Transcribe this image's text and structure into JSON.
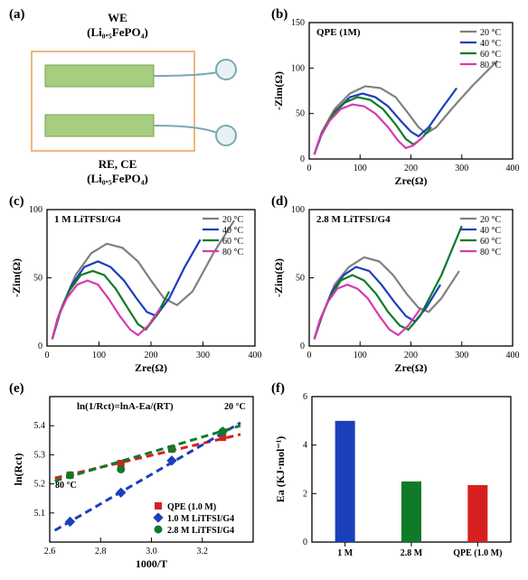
{
  "panel_a": {
    "label": "(a)",
    "we_label": "WE",
    "we_material": "(Li₀.₅FePO₄)",
    "rece_label": "RE, CE",
    "rece_material": "(Li₀.₅FePO₄)",
    "electrode_color": "#a6ce7e",
    "box_border": "#e8a052",
    "wire_color": "#7ba8b5",
    "circle_fill": "#d4e9ec"
  },
  "panel_b": {
    "label": "(b)",
    "title": "QPE (1M)",
    "xlabel": "Zre(Ω)",
    "ylabel": "-Zim(Ω)",
    "xlim": [
      0,
      400
    ],
    "xticks": [
      0,
      100,
      200,
      300,
      400
    ],
    "ylim": [
      0,
      150
    ],
    "yticks": [
      0,
      50,
      100,
      150
    ],
    "series": {
      "20C": {
        "color": "#808080",
        "label": "20 °C",
        "data": [
          [
            10,
            5
          ],
          [
            25,
            30
          ],
          [
            50,
            55
          ],
          [
            80,
            72
          ],
          [
            110,
            80
          ],
          [
            140,
            78
          ],
          [
            170,
            68
          ],
          [
            195,
            50
          ],
          [
            215,
            35
          ],
          [
            230,
            28
          ],
          [
            250,
            35
          ],
          [
            280,
            55
          ],
          [
            320,
            80
          ],
          [
            370,
            108
          ]
        ]
      },
      "40C": {
        "color": "#1b3fbb",
        "label": "40 °C",
        "data": [
          [
            10,
            5
          ],
          [
            25,
            28
          ],
          [
            50,
            52
          ],
          [
            80,
            68
          ],
          [
            105,
            72
          ],
          [
            130,
            68
          ],
          [
            155,
            58
          ],
          [
            180,
            42
          ],
          [
            200,
            30
          ],
          [
            215,
            25
          ],
          [
            235,
            35
          ],
          [
            260,
            55
          ],
          [
            290,
            78
          ]
        ]
      },
      "60C": {
        "color": "#0f7a28",
        "label": "60 °C",
        "data": [
          [
            10,
            5
          ],
          [
            22,
            25
          ],
          [
            45,
            48
          ],
          [
            70,
            62
          ],
          [
            95,
            68
          ],
          [
            120,
            65
          ],
          [
            145,
            55
          ],
          [
            170,
            38
          ],
          [
            190,
            22
          ],
          [
            205,
            16
          ],
          [
            220,
            22
          ],
          [
            240,
            35
          ]
        ]
      },
      "80C": {
        "color": "#d63ab0",
        "label": "80 °C",
        "data": [
          [
            10,
            5
          ],
          [
            20,
            22
          ],
          [
            40,
            42
          ],
          [
            62,
            55
          ],
          [
            85,
            60
          ],
          [
            108,
            58
          ],
          [
            130,
            50
          ],
          [
            155,
            35
          ],
          [
            175,
            20
          ],
          [
            190,
            12
          ],
          [
            205,
            15
          ],
          [
            225,
            25
          ]
        ]
      }
    }
  },
  "panel_c": {
    "label": "(c)",
    "title": "1 M LiTFSI/G4",
    "xlabel": "Zre(Ω)",
    "ylabel": "-Zim(Ω)",
    "xlim": [
      0,
      400
    ],
    "xticks": [
      0,
      100,
      200,
      300,
      400
    ],
    "ylim": [
      0,
      100
    ],
    "yticks": [
      0,
      50,
      100
    ],
    "series": {
      "20C": {
        "color": "#808080",
        "label": "20 °C",
        "data": [
          [
            10,
            5
          ],
          [
            30,
            30
          ],
          [
            55,
            52
          ],
          [
            85,
            68
          ],
          [
            115,
            75
          ],
          [
            145,
            72
          ],
          [
            175,
            62
          ],
          [
            200,
            48
          ],
          [
            225,
            35
          ],
          [
            250,
            30
          ],
          [
            280,
            40
          ],
          [
            320,
            68
          ],
          [
            360,
            92
          ]
        ]
      },
      "40C": {
        "color": "#1b3fbb",
        "label": "40 °C",
        "data": [
          [
            10,
            5
          ],
          [
            25,
            25
          ],
          [
            48,
            45
          ],
          [
            72,
            58
          ],
          [
            98,
            62
          ],
          [
            122,
            58
          ],
          [
            148,
            48
          ],
          [
            172,
            35
          ],
          [
            192,
            25
          ],
          [
            210,
            22
          ],
          [
            235,
            35
          ],
          [
            265,
            58
          ],
          [
            295,
            78
          ]
        ]
      },
      "60C": {
        "color": "#0f7a28",
        "label": "60 °C",
        "data": [
          [
            10,
            5
          ],
          [
            22,
            22
          ],
          [
            42,
            40
          ],
          [
            65,
            52
          ],
          [
            88,
            55
          ],
          [
            110,
            52
          ],
          [
            132,
            42
          ],
          [
            155,
            28
          ],
          [
            175,
            16
          ],
          [
            190,
            12
          ],
          [
            210,
            22
          ],
          [
            235,
            40
          ]
        ]
      },
      "80C": {
        "color": "#d63ab0",
        "label": "80 °C",
        "data": [
          [
            10,
            5
          ],
          [
            20,
            20
          ],
          [
            38,
            35
          ],
          [
            58,
            45
          ],
          [
            78,
            48
          ],
          [
            98,
            45
          ],
          [
            118,
            35
          ],
          [
            140,
            22
          ],
          [
            160,
            12
          ],
          [
            175,
            8
          ],
          [
            195,
            15
          ],
          [
            218,
            28
          ]
        ]
      }
    }
  },
  "panel_d": {
    "label": "(d)",
    "title": "2.8 M LiTFSI/G4",
    "xlabel": "Zre(Ω)",
    "ylabel": "-Zim(Ω)",
    "xlim": [
      0,
      400
    ],
    "xticks": [
      0,
      100,
      200,
      300,
      400
    ],
    "ylim": [
      0,
      100
    ],
    "yticks": [
      0,
      50,
      100
    ],
    "series": {
      "20C": {
        "color": "#808080",
        "label": "20 °C",
        "data": [
          [
            10,
            5
          ],
          [
            28,
            25
          ],
          [
            50,
            45
          ],
          [
            78,
            58
          ],
          [
            108,
            65
          ],
          [
            138,
            62
          ],
          [
            165,
            52
          ],
          [
            192,
            38
          ],
          [
            215,
            28
          ],
          [
            235,
            25
          ],
          [
            260,
            35
          ],
          [
            295,
            55
          ]
        ]
      },
      "40C": {
        "color": "#1b3fbb",
        "label": "40 °C",
        "data": [
          [
            10,
            5
          ],
          [
            25,
            22
          ],
          [
            45,
            40
          ],
          [
            68,
            52
          ],
          [
            92,
            58
          ],
          [
            118,
            55
          ],
          [
            142,
            45
          ],
          [
            168,
            32
          ],
          [
            190,
            22
          ],
          [
            208,
            18
          ],
          [
            230,
            28
          ],
          [
            258,
            45
          ]
        ]
      },
      "60C": {
        "color": "#0f7a28",
        "label": "60 °C",
        "data": [
          [
            10,
            5
          ],
          [
            22,
            20
          ],
          [
            40,
            35
          ],
          [
            62,
            48
          ],
          [
            85,
            52
          ],
          [
            108,
            48
          ],
          [
            132,
            38
          ],
          [
            155,
            25
          ],
          [
            178,
            15
          ],
          [
            195,
            12
          ],
          [
            218,
            22
          ],
          [
            260,
            52
          ],
          [
            300,
            88
          ]
        ]
      },
      "80C": {
        "color": "#d63ab0",
        "label": "80 °C",
        "data": [
          [
            10,
            5
          ],
          [
            20,
            18
          ],
          [
            36,
            32
          ],
          [
            55,
            42
          ],
          [
            75,
            45
          ],
          [
            95,
            42
          ],
          [
            115,
            35
          ],
          [
            138,
            22
          ],
          [
            158,
            12
          ],
          [
            175,
            8
          ],
          [
            195,
            15
          ],
          [
            220,
            28
          ]
        ]
      }
    }
  },
  "panel_e": {
    "label": "(e)",
    "equation": "ln(1/Rct)=lnA-Ea/(RT)",
    "xlabel": "1000/T",
    "ylabel": "ln(Rct)",
    "xlim": [
      2.6,
      3.4
    ],
    "xticks": [
      "2.6",
      "2.8",
      "3.0",
      "3.2"
    ],
    "ylim": [
      5.0,
      5.5
    ],
    "yticks": [
      "5.1",
      "5.2",
      "5.3",
      "5.4"
    ],
    "temp_labels": {
      "left": "80 °C",
      "right": "20 °C"
    },
    "series": {
      "qpe": {
        "color": "#d62020",
        "label": "QPE (1.0 M)",
        "marker": "square",
        "points": [
          [
            2.68,
            5.23
          ],
          [
            2.88,
            5.27
          ],
          [
            3.08,
            5.32
          ],
          [
            3.28,
            5.36
          ]
        ],
        "fit": [
          [
            2.62,
            5.22
          ],
          [
            3.35,
            5.37
          ]
        ]
      },
      "1m": {
        "color": "#1b3fbb",
        "label": "1.0 M LiTFSI/G4",
        "marker": "diamond",
        "points": [
          [
            2.68,
            5.07
          ],
          [
            2.88,
            5.17
          ],
          [
            3.08,
            5.28
          ],
          [
            3.28,
            5.38
          ]
        ],
        "fit": [
          [
            2.62,
            5.04
          ],
          [
            3.35,
            5.41
          ]
        ]
      },
      "28m": {
        "color": "#0f7a28",
        "label": "2.8 M LiTFSI/G4",
        "marker": "circle",
        "points": [
          [
            2.68,
            5.23
          ],
          [
            2.88,
            5.25
          ],
          [
            3.08,
            5.32
          ],
          [
            3.28,
            5.38
          ]
        ],
        "fit": [
          [
            2.62,
            5.21
          ],
          [
            3.35,
            5.4
          ]
        ]
      }
    }
  },
  "panel_f": {
    "label": "(f)",
    "xlabel": "",
    "ylabel": "Ea (KJ·mol⁻¹)",
    "ylim": [
      0,
      6
    ],
    "yticks": [
      0,
      2,
      4,
      6
    ],
    "bars": [
      {
        "label": "1 M",
        "value": 5.0,
        "color": "#1b3fbb"
      },
      {
        "label": "2.8 M",
        "value": 2.5,
        "color": "#0f7a28"
      },
      {
        "label": "QPE (1.0 M)",
        "value": 2.35,
        "color": "#d62020"
      }
    ]
  },
  "colors": {
    "axis": "#000000",
    "border": "#333333"
  }
}
